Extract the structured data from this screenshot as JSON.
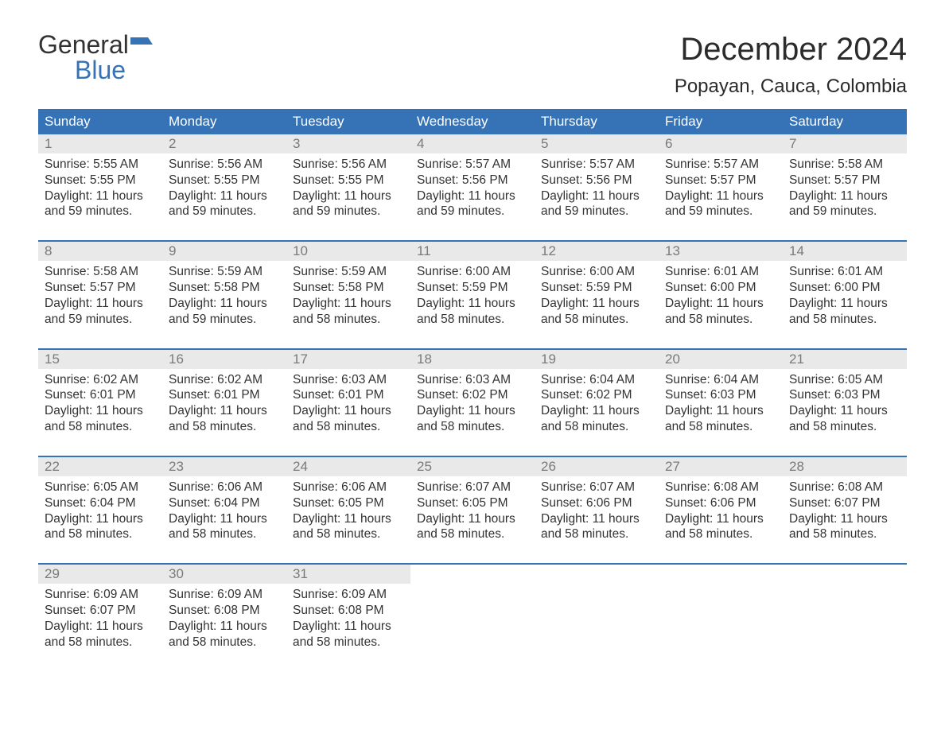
{
  "logo": {
    "line1": "General",
    "line2": "Blue"
  },
  "header": {
    "month_title": "December 2024",
    "location": "Popayan, Cauca, Colombia"
  },
  "calendar": {
    "day_of_week_labels": [
      "Sunday",
      "Monday",
      "Tuesday",
      "Wednesday",
      "Thursday",
      "Friday",
      "Saturday"
    ],
    "colors": {
      "header_bg": "#3673b6",
      "header_text": "#ffffff",
      "daynum_bg": "#e9e9e9",
      "daynum_text": "#7a7a7a",
      "week_border": "#3673b6",
      "body_text": "#333333",
      "page_bg": "#ffffff"
    },
    "weeks": [
      [
        {
          "day": "1",
          "sunrise": "Sunrise: 5:55 AM",
          "sunset": "Sunset: 5:55 PM",
          "daylight1": "Daylight: 11 hours",
          "daylight2": "and 59 minutes."
        },
        {
          "day": "2",
          "sunrise": "Sunrise: 5:56 AM",
          "sunset": "Sunset: 5:55 PM",
          "daylight1": "Daylight: 11 hours",
          "daylight2": "and 59 minutes."
        },
        {
          "day": "3",
          "sunrise": "Sunrise: 5:56 AM",
          "sunset": "Sunset: 5:55 PM",
          "daylight1": "Daylight: 11 hours",
          "daylight2": "and 59 minutes."
        },
        {
          "day": "4",
          "sunrise": "Sunrise: 5:57 AM",
          "sunset": "Sunset: 5:56 PM",
          "daylight1": "Daylight: 11 hours",
          "daylight2": "and 59 minutes."
        },
        {
          "day": "5",
          "sunrise": "Sunrise: 5:57 AM",
          "sunset": "Sunset: 5:56 PM",
          "daylight1": "Daylight: 11 hours",
          "daylight2": "and 59 minutes."
        },
        {
          "day": "6",
          "sunrise": "Sunrise: 5:57 AM",
          "sunset": "Sunset: 5:57 PM",
          "daylight1": "Daylight: 11 hours",
          "daylight2": "and 59 minutes."
        },
        {
          "day": "7",
          "sunrise": "Sunrise: 5:58 AM",
          "sunset": "Sunset: 5:57 PM",
          "daylight1": "Daylight: 11 hours",
          "daylight2": "and 59 minutes."
        }
      ],
      [
        {
          "day": "8",
          "sunrise": "Sunrise: 5:58 AM",
          "sunset": "Sunset: 5:57 PM",
          "daylight1": "Daylight: 11 hours",
          "daylight2": "and 59 minutes."
        },
        {
          "day": "9",
          "sunrise": "Sunrise: 5:59 AM",
          "sunset": "Sunset: 5:58 PM",
          "daylight1": "Daylight: 11 hours",
          "daylight2": "and 59 minutes."
        },
        {
          "day": "10",
          "sunrise": "Sunrise: 5:59 AM",
          "sunset": "Sunset: 5:58 PM",
          "daylight1": "Daylight: 11 hours",
          "daylight2": "and 58 minutes."
        },
        {
          "day": "11",
          "sunrise": "Sunrise: 6:00 AM",
          "sunset": "Sunset: 5:59 PM",
          "daylight1": "Daylight: 11 hours",
          "daylight2": "and 58 minutes."
        },
        {
          "day": "12",
          "sunrise": "Sunrise: 6:00 AM",
          "sunset": "Sunset: 5:59 PM",
          "daylight1": "Daylight: 11 hours",
          "daylight2": "and 58 minutes."
        },
        {
          "day": "13",
          "sunrise": "Sunrise: 6:01 AM",
          "sunset": "Sunset: 6:00 PM",
          "daylight1": "Daylight: 11 hours",
          "daylight2": "and 58 minutes."
        },
        {
          "day": "14",
          "sunrise": "Sunrise: 6:01 AM",
          "sunset": "Sunset: 6:00 PM",
          "daylight1": "Daylight: 11 hours",
          "daylight2": "and 58 minutes."
        }
      ],
      [
        {
          "day": "15",
          "sunrise": "Sunrise: 6:02 AM",
          "sunset": "Sunset: 6:01 PM",
          "daylight1": "Daylight: 11 hours",
          "daylight2": "and 58 minutes."
        },
        {
          "day": "16",
          "sunrise": "Sunrise: 6:02 AM",
          "sunset": "Sunset: 6:01 PM",
          "daylight1": "Daylight: 11 hours",
          "daylight2": "and 58 minutes."
        },
        {
          "day": "17",
          "sunrise": "Sunrise: 6:03 AM",
          "sunset": "Sunset: 6:01 PM",
          "daylight1": "Daylight: 11 hours",
          "daylight2": "and 58 minutes."
        },
        {
          "day": "18",
          "sunrise": "Sunrise: 6:03 AM",
          "sunset": "Sunset: 6:02 PM",
          "daylight1": "Daylight: 11 hours",
          "daylight2": "and 58 minutes."
        },
        {
          "day": "19",
          "sunrise": "Sunrise: 6:04 AM",
          "sunset": "Sunset: 6:02 PM",
          "daylight1": "Daylight: 11 hours",
          "daylight2": "and 58 minutes."
        },
        {
          "day": "20",
          "sunrise": "Sunrise: 6:04 AM",
          "sunset": "Sunset: 6:03 PM",
          "daylight1": "Daylight: 11 hours",
          "daylight2": "and 58 minutes."
        },
        {
          "day": "21",
          "sunrise": "Sunrise: 6:05 AM",
          "sunset": "Sunset: 6:03 PM",
          "daylight1": "Daylight: 11 hours",
          "daylight2": "and 58 minutes."
        }
      ],
      [
        {
          "day": "22",
          "sunrise": "Sunrise: 6:05 AM",
          "sunset": "Sunset: 6:04 PM",
          "daylight1": "Daylight: 11 hours",
          "daylight2": "and 58 minutes."
        },
        {
          "day": "23",
          "sunrise": "Sunrise: 6:06 AM",
          "sunset": "Sunset: 6:04 PM",
          "daylight1": "Daylight: 11 hours",
          "daylight2": "and 58 minutes."
        },
        {
          "day": "24",
          "sunrise": "Sunrise: 6:06 AM",
          "sunset": "Sunset: 6:05 PM",
          "daylight1": "Daylight: 11 hours",
          "daylight2": "and 58 minutes."
        },
        {
          "day": "25",
          "sunrise": "Sunrise: 6:07 AM",
          "sunset": "Sunset: 6:05 PM",
          "daylight1": "Daylight: 11 hours",
          "daylight2": "and 58 minutes."
        },
        {
          "day": "26",
          "sunrise": "Sunrise: 6:07 AM",
          "sunset": "Sunset: 6:06 PM",
          "daylight1": "Daylight: 11 hours",
          "daylight2": "and 58 minutes."
        },
        {
          "day": "27",
          "sunrise": "Sunrise: 6:08 AM",
          "sunset": "Sunset: 6:06 PM",
          "daylight1": "Daylight: 11 hours",
          "daylight2": "and 58 minutes."
        },
        {
          "day": "28",
          "sunrise": "Sunrise: 6:08 AM",
          "sunset": "Sunset: 6:07 PM",
          "daylight1": "Daylight: 11 hours",
          "daylight2": "and 58 minutes."
        }
      ],
      [
        {
          "day": "29",
          "sunrise": "Sunrise: 6:09 AM",
          "sunset": "Sunset: 6:07 PM",
          "daylight1": "Daylight: 11 hours",
          "daylight2": "and 58 minutes."
        },
        {
          "day": "30",
          "sunrise": "Sunrise: 6:09 AM",
          "sunset": "Sunset: 6:08 PM",
          "daylight1": "Daylight: 11 hours",
          "daylight2": "and 58 minutes."
        },
        {
          "day": "31",
          "sunrise": "Sunrise: 6:09 AM",
          "sunset": "Sunset: 6:08 PM",
          "daylight1": "Daylight: 11 hours",
          "daylight2": "and 58 minutes."
        },
        {
          "empty": true
        },
        {
          "empty": true
        },
        {
          "empty": true
        },
        {
          "empty": true
        }
      ]
    ]
  }
}
